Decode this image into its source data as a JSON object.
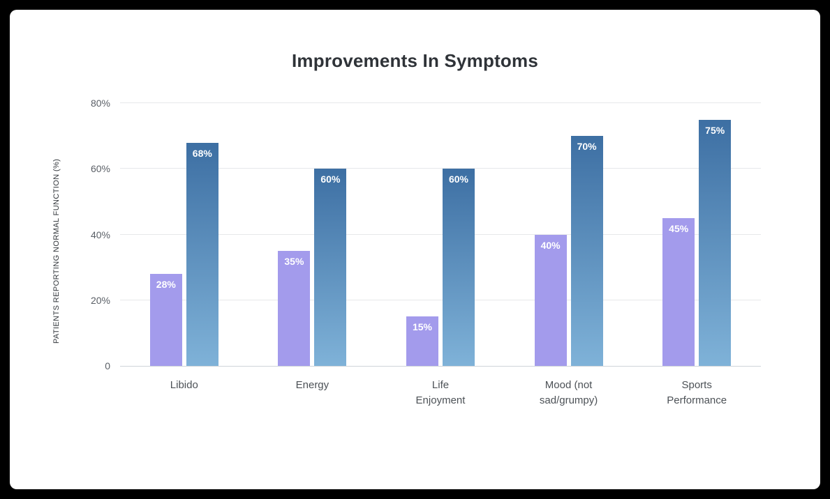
{
  "frame": {
    "background": "#000000",
    "canvas_background": "#ffffff"
  },
  "chart_data": {
    "type": "bar",
    "title": "Improvements In Symptoms",
    "ylabel": "PATIENTS REPORTING NORMAL FUNCTION (%)",
    "xlabel": "",
    "categories": [
      "Libido",
      "Energy",
      "Life Enjoyment",
      "Mood (not sad/grumpy)",
      "Sports Performance"
    ],
    "category_lines": [
      [
        "Libido"
      ],
      [
        "Energy"
      ],
      [
        "Life",
        "Enjoyment"
      ],
      [
        "Mood (not",
        "sad/grumpy)"
      ],
      [
        "Sports",
        "Performance"
      ]
    ],
    "series": [
      {
        "color": "#a39bec",
        "values": [
          28,
          35,
          15,
          40,
          45
        ],
        "labels": [
          "28%",
          "35%",
          "15%",
          "40%",
          "45%"
        ]
      },
      {
        "color_top": "#3d6fa3",
        "color_bottom": "#7fb2d8",
        "values": [
          68,
          60,
          60,
          70,
          75
        ],
        "labels": [
          "68%",
          "60%",
          "60%",
          "70%",
          "75%"
        ]
      }
    ],
    "ylim": [
      0,
      80
    ],
    "ytick_values": [
      0,
      20,
      40,
      60,
      80
    ],
    "ytick_labels": [
      "0",
      "20%",
      "40%",
      "60%",
      "80%"
    ],
    "grid": true,
    "legend_position": "none"
  }
}
